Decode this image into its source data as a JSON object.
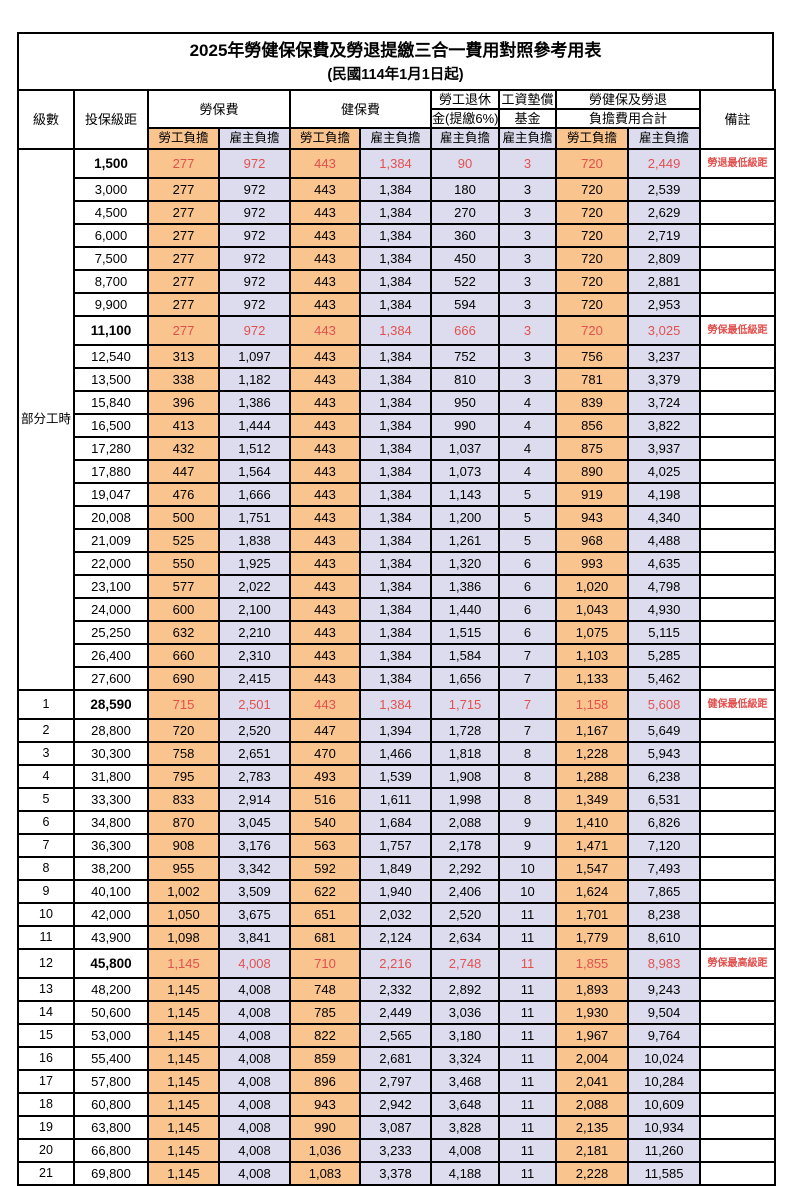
{
  "title": "2025年勞健保保費及勞退提繳三合一費用對照參考用表",
  "subtitle": "(民國114年1月1日起)",
  "part_time_label": "部分工時",
  "colors": {
    "worker_bg": "#F9C48E",
    "employer_bg": "#DDDCEE",
    "highlight_text": "#E2504E",
    "border": "#000000"
  },
  "header": {
    "level": "級數",
    "bracket": "投保級距",
    "labor": "勞保費",
    "health": "健保費",
    "pension_line1": "勞工退休",
    "pension_line2": "金(提繳6%)",
    "fund_line1": "工資墊償",
    "fund_line2": "基金",
    "total_line1": "勞健保及勞退",
    "total_line2": "負擔費用合計",
    "worker": "勞工負擔",
    "employer": "雇主負擔",
    "remark": "備註"
  },
  "rows": [
    {
      "level": "",
      "bracket": "1,500",
      "labor_w": "277",
      "labor_e": "972",
      "health_w": "443",
      "health_e": "1,384",
      "pension_e": "90",
      "fund_e": "3",
      "total_w": "720",
      "total_e": "2,449",
      "remark": "勞退最低級距",
      "highlight": true
    },
    {
      "level": "",
      "bracket": "3,000",
      "labor_w": "277",
      "labor_e": "972",
      "health_w": "443",
      "health_e": "1,384",
      "pension_e": "180",
      "fund_e": "3",
      "total_w": "720",
      "total_e": "2,539",
      "remark": "",
      "highlight": false
    },
    {
      "level": "",
      "bracket": "4,500",
      "labor_w": "277",
      "labor_e": "972",
      "health_w": "443",
      "health_e": "1,384",
      "pension_e": "270",
      "fund_e": "3",
      "total_w": "720",
      "total_e": "2,629",
      "remark": "",
      "highlight": false
    },
    {
      "level": "",
      "bracket": "6,000",
      "labor_w": "277",
      "labor_e": "972",
      "health_w": "443",
      "health_e": "1,384",
      "pension_e": "360",
      "fund_e": "3",
      "total_w": "720",
      "total_e": "2,719",
      "remark": "",
      "highlight": false
    },
    {
      "level": "",
      "bracket": "7,500",
      "labor_w": "277",
      "labor_e": "972",
      "health_w": "443",
      "health_e": "1,384",
      "pension_e": "450",
      "fund_e": "3",
      "total_w": "720",
      "total_e": "2,809",
      "remark": "",
      "highlight": false
    },
    {
      "level": "",
      "bracket": "8,700",
      "labor_w": "277",
      "labor_e": "972",
      "health_w": "443",
      "health_e": "1,384",
      "pension_e": "522",
      "fund_e": "3",
      "total_w": "720",
      "total_e": "2,881",
      "remark": "",
      "highlight": false
    },
    {
      "level": "",
      "bracket": "9,900",
      "labor_w": "277",
      "labor_e": "972",
      "health_w": "443",
      "health_e": "1,384",
      "pension_e": "594",
      "fund_e": "3",
      "total_w": "720",
      "total_e": "2,953",
      "remark": "",
      "highlight": false
    },
    {
      "level": "",
      "bracket": "11,100",
      "labor_w": "277",
      "labor_e": "972",
      "health_w": "443",
      "health_e": "1,384",
      "pension_e": "666",
      "fund_e": "3",
      "total_w": "720",
      "total_e": "3,025",
      "remark": "勞保最低級距",
      "highlight": true
    },
    {
      "level": "",
      "bracket": "12,540",
      "labor_w": "313",
      "labor_e": "1,097",
      "health_w": "443",
      "health_e": "1,384",
      "pension_e": "752",
      "fund_e": "3",
      "total_w": "756",
      "total_e": "3,237",
      "remark": "",
      "highlight": false
    },
    {
      "level": "",
      "bracket": "13,500",
      "labor_w": "338",
      "labor_e": "1,182",
      "health_w": "443",
      "health_e": "1,384",
      "pension_e": "810",
      "fund_e": "3",
      "total_w": "781",
      "total_e": "3,379",
      "remark": "",
      "highlight": false
    },
    {
      "level": "",
      "bracket": "15,840",
      "labor_w": "396",
      "labor_e": "1,386",
      "health_w": "443",
      "health_e": "1,384",
      "pension_e": "950",
      "fund_e": "4",
      "total_w": "839",
      "total_e": "3,724",
      "remark": "",
      "highlight": false
    },
    {
      "level": "",
      "bracket": "16,500",
      "labor_w": "413",
      "labor_e": "1,444",
      "health_w": "443",
      "health_e": "1,384",
      "pension_e": "990",
      "fund_e": "4",
      "total_w": "856",
      "total_e": "3,822",
      "remark": "",
      "highlight": false
    },
    {
      "level": "",
      "bracket": "17,280",
      "labor_w": "432",
      "labor_e": "1,512",
      "health_w": "443",
      "health_e": "1,384",
      "pension_e": "1,037",
      "fund_e": "4",
      "total_w": "875",
      "total_e": "3,937",
      "remark": "",
      "highlight": false
    },
    {
      "level": "",
      "bracket": "17,880",
      "labor_w": "447",
      "labor_e": "1,564",
      "health_w": "443",
      "health_e": "1,384",
      "pension_e": "1,073",
      "fund_e": "4",
      "total_w": "890",
      "total_e": "4,025",
      "remark": "",
      "highlight": false
    },
    {
      "level": "",
      "bracket": "19,047",
      "labor_w": "476",
      "labor_e": "1,666",
      "health_w": "443",
      "health_e": "1,384",
      "pension_e": "1,143",
      "fund_e": "5",
      "total_w": "919",
      "total_e": "4,198",
      "remark": "",
      "highlight": false
    },
    {
      "level": "",
      "bracket": "20,008",
      "labor_w": "500",
      "labor_e": "1,751",
      "health_w": "443",
      "health_e": "1,384",
      "pension_e": "1,200",
      "fund_e": "5",
      "total_w": "943",
      "total_e": "4,340",
      "remark": "",
      "highlight": false
    },
    {
      "level": "",
      "bracket": "21,009",
      "labor_w": "525",
      "labor_e": "1,838",
      "health_w": "443",
      "health_e": "1,384",
      "pension_e": "1,261",
      "fund_e": "5",
      "total_w": "968",
      "total_e": "4,488",
      "remark": "",
      "highlight": false
    },
    {
      "level": "",
      "bracket": "22,000",
      "labor_w": "550",
      "labor_e": "1,925",
      "health_w": "443",
      "health_e": "1,384",
      "pension_e": "1,320",
      "fund_e": "6",
      "total_w": "993",
      "total_e": "4,635",
      "remark": "",
      "highlight": false
    },
    {
      "level": "",
      "bracket": "23,100",
      "labor_w": "577",
      "labor_e": "2,022",
      "health_w": "443",
      "health_e": "1,384",
      "pension_e": "1,386",
      "fund_e": "6",
      "total_w": "1,020",
      "total_e": "4,798",
      "remark": "",
      "highlight": false
    },
    {
      "level": "",
      "bracket": "24,000",
      "labor_w": "600",
      "labor_e": "2,100",
      "health_w": "443",
      "health_e": "1,384",
      "pension_e": "1,440",
      "fund_e": "6",
      "total_w": "1,043",
      "total_e": "4,930",
      "remark": "",
      "highlight": false
    },
    {
      "level": "",
      "bracket": "25,250",
      "labor_w": "632",
      "labor_e": "2,210",
      "health_w": "443",
      "health_e": "1,384",
      "pension_e": "1,515",
      "fund_e": "6",
      "total_w": "1,075",
      "total_e": "5,115",
      "remark": "",
      "highlight": false
    },
    {
      "level": "",
      "bracket": "26,400",
      "labor_w": "660",
      "labor_e": "2,310",
      "health_w": "443",
      "health_e": "1,384",
      "pension_e": "1,584",
      "fund_e": "7",
      "total_w": "1,103",
      "total_e": "5,285",
      "remark": "",
      "highlight": false
    },
    {
      "level": "",
      "bracket": "27,600",
      "labor_w": "690",
      "labor_e": "2,415",
      "health_w": "443",
      "health_e": "1,384",
      "pension_e": "1,656",
      "fund_e": "7",
      "total_w": "1,133",
      "total_e": "5,462",
      "remark": "",
      "highlight": false
    },
    {
      "level": "1",
      "bracket": "28,590",
      "labor_w": "715",
      "labor_e": "2,501",
      "health_w": "443",
      "health_e": "1,384",
      "pension_e": "1,715",
      "fund_e": "7",
      "total_w": "1,158",
      "total_e": "5,608",
      "remark": "健保最低級距",
      "highlight": true
    },
    {
      "level": "2",
      "bracket": "28,800",
      "labor_w": "720",
      "labor_e": "2,520",
      "health_w": "447",
      "health_e": "1,394",
      "pension_e": "1,728",
      "fund_e": "7",
      "total_w": "1,167",
      "total_e": "5,649",
      "remark": "",
      "highlight": false
    },
    {
      "level": "3",
      "bracket": "30,300",
      "labor_w": "758",
      "labor_e": "2,651",
      "health_w": "470",
      "health_e": "1,466",
      "pension_e": "1,818",
      "fund_e": "8",
      "total_w": "1,228",
      "total_e": "5,943",
      "remark": "",
      "highlight": false
    },
    {
      "level": "4",
      "bracket": "31,800",
      "labor_w": "795",
      "labor_e": "2,783",
      "health_w": "493",
      "health_e": "1,539",
      "pension_e": "1,908",
      "fund_e": "8",
      "total_w": "1,288",
      "total_e": "6,238",
      "remark": "",
      "highlight": false
    },
    {
      "level": "5",
      "bracket": "33,300",
      "labor_w": "833",
      "labor_e": "2,914",
      "health_w": "516",
      "health_e": "1,611",
      "pension_e": "1,998",
      "fund_e": "8",
      "total_w": "1,349",
      "total_e": "6,531",
      "remark": "",
      "highlight": false
    },
    {
      "level": "6",
      "bracket": "34,800",
      "labor_w": "870",
      "labor_e": "3,045",
      "health_w": "540",
      "health_e": "1,684",
      "pension_e": "2,088",
      "fund_e": "9",
      "total_w": "1,410",
      "total_e": "6,826",
      "remark": "",
      "highlight": false
    },
    {
      "level": "7",
      "bracket": "36,300",
      "labor_w": "908",
      "labor_e": "3,176",
      "health_w": "563",
      "health_e": "1,757",
      "pension_e": "2,178",
      "fund_e": "9",
      "total_w": "1,471",
      "total_e": "7,120",
      "remark": "",
      "highlight": false
    },
    {
      "level": "8",
      "bracket": "38,200",
      "labor_w": "955",
      "labor_e": "3,342",
      "health_w": "592",
      "health_e": "1,849",
      "pension_e": "2,292",
      "fund_e": "10",
      "total_w": "1,547",
      "total_e": "7,493",
      "remark": "",
      "highlight": false
    },
    {
      "level": "9",
      "bracket": "40,100",
      "labor_w": "1,002",
      "labor_e": "3,509",
      "health_w": "622",
      "health_e": "1,940",
      "pension_e": "2,406",
      "fund_e": "10",
      "total_w": "1,624",
      "total_e": "7,865",
      "remark": "",
      "highlight": false
    },
    {
      "level": "10",
      "bracket": "42,000",
      "labor_w": "1,050",
      "labor_e": "3,675",
      "health_w": "651",
      "health_e": "2,032",
      "pension_e": "2,520",
      "fund_e": "11",
      "total_w": "1,701",
      "total_e": "8,238",
      "remark": "",
      "highlight": false
    },
    {
      "level": "11",
      "bracket": "43,900",
      "labor_w": "1,098",
      "labor_e": "3,841",
      "health_w": "681",
      "health_e": "2,124",
      "pension_e": "2,634",
      "fund_e": "11",
      "total_w": "1,779",
      "total_e": "8,610",
      "remark": "",
      "highlight": false
    },
    {
      "level": "12",
      "bracket": "45,800",
      "labor_w": "1,145",
      "labor_e": "4,008",
      "health_w": "710",
      "health_e": "2,216",
      "pension_e": "2,748",
      "fund_e": "11",
      "total_w": "1,855",
      "total_e": "8,983",
      "remark": "勞保最高級距",
      "highlight": true
    },
    {
      "level": "13",
      "bracket": "48,200",
      "labor_w": "1,145",
      "labor_e": "4,008",
      "health_w": "748",
      "health_e": "2,332",
      "pension_e": "2,892",
      "fund_e": "11",
      "total_w": "1,893",
      "total_e": "9,243",
      "remark": "",
      "highlight": false
    },
    {
      "level": "14",
      "bracket": "50,600",
      "labor_w": "1,145",
      "labor_e": "4,008",
      "health_w": "785",
      "health_e": "2,449",
      "pension_e": "3,036",
      "fund_e": "11",
      "total_w": "1,930",
      "total_e": "9,504",
      "remark": "",
      "highlight": false
    },
    {
      "level": "15",
      "bracket": "53,000",
      "labor_w": "1,145",
      "labor_e": "4,008",
      "health_w": "822",
      "health_e": "2,565",
      "pension_e": "3,180",
      "fund_e": "11",
      "total_w": "1,967",
      "total_e": "9,764",
      "remark": "",
      "highlight": false
    },
    {
      "level": "16",
      "bracket": "55,400",
      "labor_w": "1,145",
      "labor_e": "4,008",
      "health_w": "859",
      "health_e": "2,681",
      "pension_e": "3,324",
      "fund_e": "11",
      "total_w": "2,004",
      "total_e": "10,024",
      "remark": "",
      "highlight": false
    },
    {
      "level": "17",
      "bracket": "57,800",
      "labor_w": "1,145",
      "labor_e": "4,008",
      "health_w": "896",
      "health_e": "2,797",
      "pension_e": "3,468",
      "fund_e": "11",
      "total_w": "2,041",
      "total_e": "10,284",
      "remark": "",
      "highlight": false
    },
    {
      "level": "18",
      "bracket": "60,800",
      "labor_w": "1,145",
      "labor_e": "4,008",
      "health_w": "943",
      "health_e": "2,942",
      "pension_e": "3,648",
      "fund_e": "11",
      "total_w": "2,088",
      "total_e": "10,609",
      "remark": "",
      "highlight": false
    },
    {
      "level": "19",
      "bracket": "63,800",
      "labor_w": "1,145",
      "labor_e": "4,008",
      "health_w": "990",
      "health_e": "3,087",
      "pension_e": "3,828",
      "fund_e": "11",
      "total_w": "2,135",
      "total_e": "10,934",
      "remark": "",
      "highlight": false
    },
    {
      "level": "20",
      "bracket": "66,800",
      "labor_w": "1,145",
      "labor_e": "4,008",
      "health_w": "1,036",
      "health_e": "3,233",
      "pension_e": "4,008",
      "fund_e": "11",
      "total_w": "2,181",
      "total_e": "11,260",
      "remark": "",
      "highlight": false
    },
    {
      "level": "21",
      "bracket": "69,800",
      "labor_w": "1,145",
      "labor_e": "4,008",
      "health_w": "1,083",
      "health_e": "3,378",
      "pension_e": "4,188",
      "fund_e": "11",
      "total_w": "2,228",
      "total_e": "11,585",
      "remark": "",
      "highlight": false
    }
  ]
}
